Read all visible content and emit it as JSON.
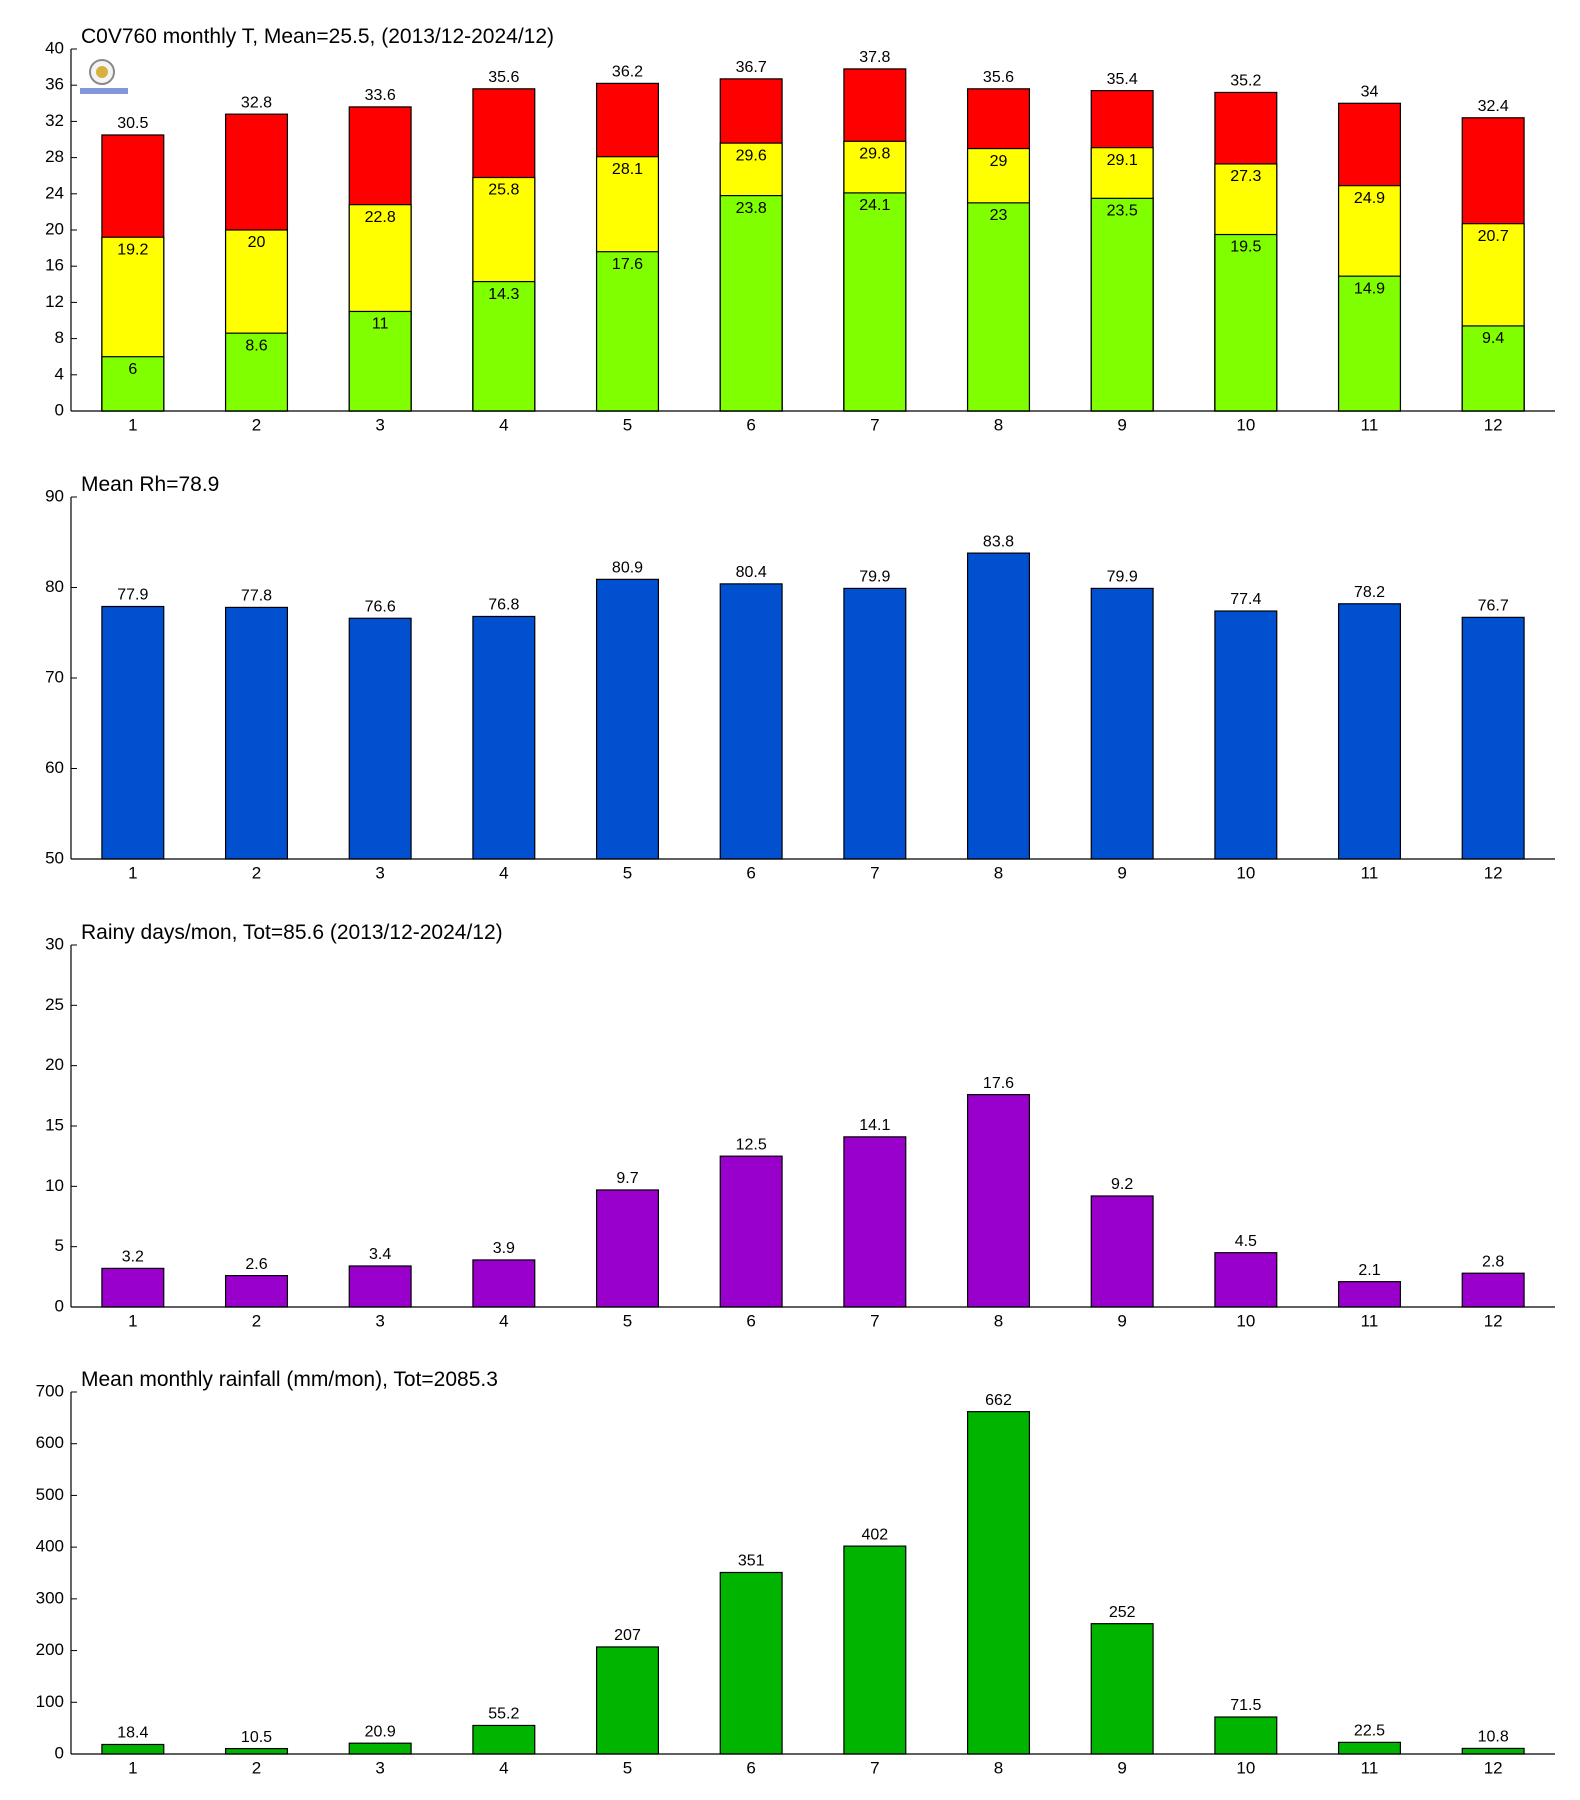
{
  "chart_data": [
    {
      "type": "bar",
      "title": "C0V760 monthly T, Mean=25.5, (2013/12-2024/12)",
      "categories": [
        "1",
        "2",
        "3",
        "4",
        "5",
        "6",
        "7",
        "8",
        "9",
        "10",
        "11",
        "12"
      ],
      "series": [
        {
          "color": "#ff0000",
          "values": [
            30.5,
            32.8,
            33.6,
            35.6,
            36.2,
            36.7,
            37.8,
            35.6,
            35.4,
            35.2,
            34,
            32.4
          ]
        },
        {
          "color": "#ffff00",
          "values": [
            19.2,
            20,
            22.8,
            25.8,
            28.1,
            29.6,
            29.8,
            29,
            29.1,
            27.3,
            24.9,
            20.7
          ]
        },
        {
          "color": "#80ff00",
          "values": [
            6,
            8.6,
            11,
            14.3,
            17.6,
            23.8,
            24.1,
            23,
            23.5,
            19.5,
            14.9,
            9.4
          ]
        }
      ],
      "ylim": [
        0,
        40
      ],
      "yticks": [
        0,
        4,
        8,
        12,
        16,
        20,
        24,
        28,
        32,
        36,
        40
      ]
    },
    {
      "type": "bar",
      "title": "Mean Rh=78.9",
      "categories": [
        "1",
        "2",
        "3",
        "4",
        "5",
        "6",
        "7",
        "8",
        "9",
        "10",
        "11",
        "12"
      ],
      "series": [
        {
          "color": "#0050d0",
          "values": [
            77.9,
            77.8,
            76.6,
            76.8,
            80.9,
            80.4,
            79.9,
            83.8,
            79.9,
            77.4,
            78.2,
            76.7
          ]
        }
      ],
      "ylim": [
        50,
        90
      ],
      "yticks": [
        50,
        60,
        70,
        80,
        90
      ]
    },
    {
      "type": "bar",
      "title": "Rainy days/mon, Tot=85.6 (2013/12-2024/12)",
      "categories": [
        "1",
        "2",
        "3",
        "4",
        "5",
        "6",
        "7",
        "8",
        "9",
        "10",
        "11",
        "12"
      ],
      "series": [
        {
          "color": "#9900cc",
          "values": [
            3.2,
            2.6,
            3.4,
            3.9,
            9.7,
            12.5,
            14.1,
            17.6,
            9.2,
            4.5,
            2.1,
            2.8
          ]
        }
      ],
      "ylim": [
        0,
        30
      ],
      "yticks": [
        0,
        5,
        10,
        15,
        20,
        25,
        30
      ]
    },
    {
      "type": "bar",
      "title": "Mean monthly rainfall (mm/mon), Tot=2085.3",
      "categories": [
        "1",
        "2",
        "3",
        "4",
        "5",
        "6",
        "7",
        "8",
        "9",
        "10",
        "11",
        "12"
      ],
      "series": [
        {
          "color": "#00b400",
          "values": [
            18.4,
            10.5,
            20.9,
            55.2,
            207,
            351,
            402,
            662,
            252,
            71.5,
            22.5,
            10.8
          ]
        }
      ],
      "ylim": [
        0,
        700
      ],
      "yticks": [
        0,
        100,
        200,
        300,
        400,
        500,
        600,
        700
      ]
    }
  ]
}
